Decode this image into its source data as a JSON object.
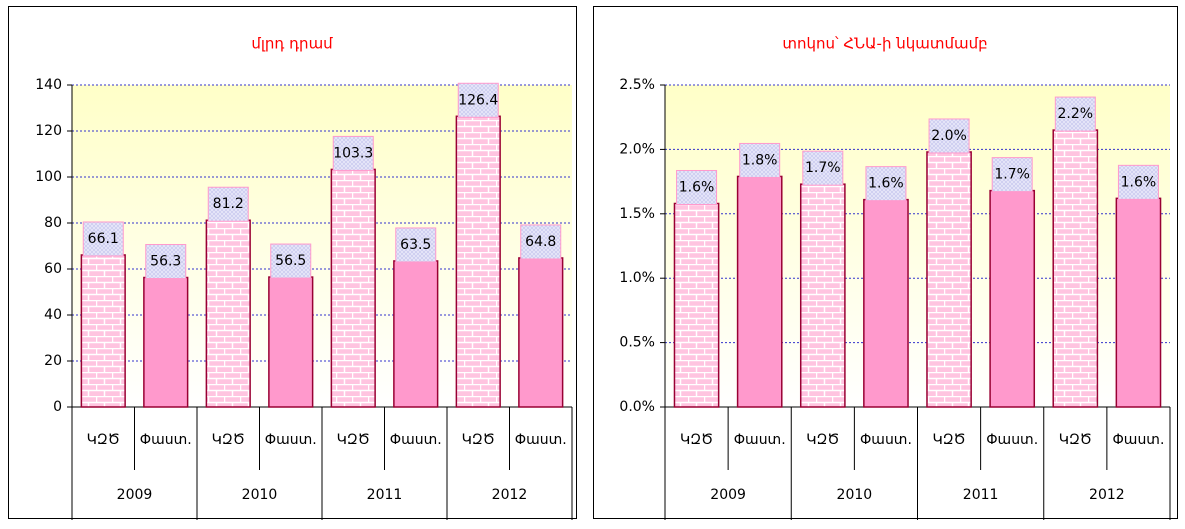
{
  "chart_data": [
    {
      "type": "bar",
      "title": "մլրդ դրամ",
      "categories": [
        "ԿԶԾ",
        "Փաստ.",
        "ԿԶԾ",
        "Փաստ.",
        "ԿԶԾ",
        "Փաստ.",
        "ԿԶԾ",
        "Փաստ."
      ],
      "groups": [
        "2009",
        "2010",
        "2011",
        "2012"
      ],
      "values": [
        66.1,
        56.3,
        81.2,
        56.5,
        103.3,
        63.5,
        126.4,
        64.8
      ],
      "ylim": [
        0,
        140
      ],
      "yticks": [
        0,
        20,
        40,
        60,
        80,
        100,
        120,
        140
      ],
      "grid": true
    },
    {
      "type": "bar",
      "title": "տոկոս՝ ՀՆԱ-ի նկատմամբ",
      "categories": [
        "ԿԶԾ",
        "Փաստ.",
        "ԿԶԾ",
        "Փաստ.",
        "ԿԶԾ",
        "Փաստ.",
        "ԿԶԾ",
        "Փաստ."
      ],
      "groups": [
        "2009",
        "2010",
        "2011",
        "2012"
      ],
      "values": [
        1.58,
        1.79,
        1.73,
        1.61,
        1.98,
        1.68,
        2.15,
        1.62
      ],
      "value_labels": [
        "1.6%",
        "1.8%",
        "1.7%",
        "1.6%",
        "2.0%",
        "1.7%",
        "2.2%",
        "1.6%"
      ],
      "ylim": [
        0,
        2.5
      ],
      "yticks": [
        {
          "value": 0,
          "label": "0.0%"
        },
        {
          "value": 0.5,
          "label": "0.5%"
        },
        {
          "value": 1,
          "label": "1.0%"
        },
        {
          "value": 1.5,
          "label": "1.5%"
        },
        {
          "value": 2,
          "label": "2.0%"
        },
        {
          "value": 2.5,
          "label": "2.5%"
        }
      ],
      "grid": true
    }
  ]
}
